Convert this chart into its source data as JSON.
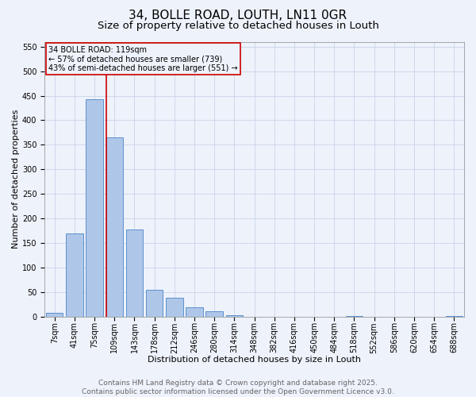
{
  "title1": "34, BOLLE ROAD, LOUTH, LN11 0GR",
  "title2": "Size of property relative to detached houses in Louth",
  "xlabel": "Distribution of detached houses by size in Louth",
  "ylabel": "Number of detached properties",
  "categories": [
    "7sqm",
    "41sqm",
    "75sqm",
    "109sqm",
    "143sqm",
    "178sqm",
    "212sqm",
    "246sqm",
    "280sqm",
    "314sqm",
    "348sqm",
    "382sqm",
    "416sqm",
    "450sqm",
    "484sqm",
    "518sqm",
    "552sqm",
    "586sqm",
    "620sqm",
    "654sqm",
    "688sqm"
  ],
  "values": [
    8,
    170,
    443,
    365,
    178,
    55,
    39,
    20,
    11,
    3,
    0,
    0,
    0,
    0,
    0,
    2,
    0,
    0,
    0,
    0,
    2
  ],
  "bar_color": "#aec6e8",
  "bar_edge_color": "#4a86c8",
  "vline_color": "#cc0000",
  "vline_x_index": 2.575,
  "annotation_text": "34 BOLLE ROAD: 119sqm\n← 57% of detached houses are smaller (739)\n43% of semi-detached houses are larger (551) →",
  "annotation_box_color": "#cc0000",
  "ylim": [
    0,
    560
  ],
  "yticks": [
    0,
    50,
    100,
    150,
    200,
    250,
    300,
    350,
    400,
    450,
    500,
    550
  ],
  "footer1": "Contains HM Land Registry data © Crown copyright and database right 2025.",
  "footer2": "Contains public sector information licensed under the Open Government Licence v3.0.",
  "bg_color": "#eef2fb",
  "grid_color": "#c8d4e8",
  "title1_fontsize": 11,
  "title2_fontsize": 9.5,
  "axis_label_fontsize": 8,
  "tick_fontsize": 7,
  "annotation_fontsize": 7,
  "footer_fontsize": 6.5
}
